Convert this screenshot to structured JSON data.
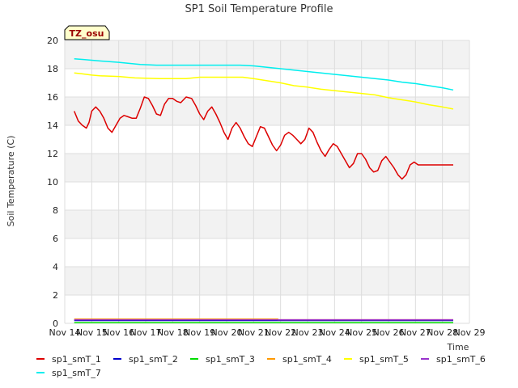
{
  "chart_data": {
    "type": "line",
    "title": "SP1 Soil Temperature Profile",
    "xlabel": "Time",
    "ylabel": "Soil Temperature (C)",
    "badge": "TZ_osu",
    "ylim": [
      0,
      20
    ],
    "yticks": [
      0,
      2,
      4,
      6,
      8,
      10,
      12,
      14,
      16,
      18,
      20
    ],
    "xlim": [
      0,
      15
    ],
    "xtick_values": [
      0,
      1,
      2,
      3,
      4,
      5,
      6,
      7,
      8,
      9,
      10,
      11,
      12,
      13,
      14,
      15
    ],
    "xtick_labels": [
      "Nov 14",
      "Nov 15",
      "Nov 16",
      "Nov 17",
      "Nov 18",
      "Nov 19",
      "Nov 20",
      "Nov 21",
      "Nov 22",
      "Nov 23",
      "Nov 24",
      "Nov 25",
      "Nov 26",
      "Nov 27",
      "Nov 28",
      "Nov 29"
    ],
    "grid": true,
    "legend_position": "bottom",
    "series": [
      {
        "name": "sp1_smT_1",
        "color": "#dd0000",
        "x": [
          0.35,
          0.5,
          0.65,
          0.8,
          0.9,
          1.0,
          1.15,
          1.3,
          1.45,
          1.6,
          1.75,
          1.9,
          2.05,
          2.2,
          2.35,
          2.5,
          2.65,
          2.8,
          2.95,
          3.1,
          3.25,
          3.4,
          3.55,
          3.7,
          3.85,
          4.0,
          4.15,
          4.3,
          4.5,
          4.7,
          4.85,
          5.0,
          5.15,
          5.3,
          5.45,
          5.6,
          5.75,
          5.9,
          6.05,
          6.2,
          6.35,
          6.5,
          6.65,
          6.8,
          6.95,
          7.1,
          7.25,
          7.4,
          7.55,
          7.7,
          7.85,
          8.0,
          8.15,
          8.3,
          8.45,
          8.6,
          8.75,
          8.9,
          9.05,
          9.2,
          9.35,
          9.5,
          9.65,
          9.8,
          9.95,
          10.1,
          10.25,
          10.4,
          10.55,
          10.7,
          10.85,
          11.0,
          11.15,
          11.3,
          11.45,
          11.6,
          11.75,
          11.9,
          12.05,
          12.2,
          12.35,
          12.5,
          12.65,
          12.8,
          12.95,
          13.1,
          13.25,
          13.4,
          13.55,
          13.7,
          13.85,
          14.0,
          14.15,
          14.3,
          14.4
        ],
        "values": [
          15.0,
          14.3,
          14.0,
          13.8,
          14.2,
          15.0,
          15.3,
          15.0,
          14.5,
          13.8,
          13.5,
          14.0,
          14.5,
          14.7,
          14.6,
          14.5,
          14.5,
          15.2,
          16.0,
          15.9,
          15.4,
          14.8,
          14.7,
          15.5,
          15.9,
          15.9,
          15.7,
          15.6,
          16.0,
          15.9,
          15.4,
          14.8,
          14.4,
          15.0,
          15.3,
          14.8,
          14.2,
          13.5,
          13.0,
          13.8,
          14.2,
          13.8,
          13.2,
          12.7,
          12.5,
          13.2,
          13.9,
          13.8,
          13.2,
          12.6,
          12.2,
          12.6,
          13.3,
          13.5,
          13.3,
          13.0,
          12.7,
          13.0,
          13.8,
          13.5,
          12.8,
          12.2,
          11.8,
          12.3,
          12.7,
          12.5,
          12.0,
          11.5,
          11.0,
          11.3,
          12.0,
          12.0,
          11.6,
          11.0,
          10.7,
          10.8,
          11.5,
          11.8,
          11.4,
          11.0,
          10.5,
          10.2,
          10.5,
          11.2,
          11.4,
          11.2,
          11.2,
          11.2,
          11.2,
          11.2,
          11.2,
          11.2,
          11.2,
          11.2,
          11.2
        ]
      },
      {
        "name": "sp1_smT_2",
        "color": "#0000cc",
        "x": [
          0.35,
          14.4
        ],
        "values": [
          0.2,
          0.2
        ]
      },
      {
        "name": "sp1_smT_3",
        "color": "#00dd00",
        "x": [
          0.35,
          14.4
        ],
        "values": [
          0.05,
          0.05
        ]
      },
      {
        "name": "sp1_smT_4",
        "color": "#ff9900",
        "x": [
          0.35,
          7.9,
          7.9,
          14.4
        ],
        "values": [
          0.3,
          0.3,
          0.25,
          0.25
        ]
      },
      {
        "name": "sp1_smT_5",
        "color": "#ffff00",
        "x": [
          0.35,
          0.6,
          1.0,
          1.3,
          2.0,
          2.6,
          3.5,
          4.5,
          5.0,
          6.0,
          6.6,
          7.0,
          7.5,
          8.0,
          8.5,
          9.0,
          9.5,
          10.0,
          10.5,
          11.0,
          11.5,
          12.0,
          12.5,
          13.0,
          13.5,
          14.0,
          14.4
        ],
        "values": [
          17.7,
          17.65,
          17.55,
          17.5,
          17.45,
          17.35,
          17.3,
          17.3,
          17.4,
          17.4,
          17.4,
          17.3,
          17.15,
          17.0,
          16.8,
          16.7,
          16.55,
          16.45,
          16.35,
          16.25,
          16.15,
          15.95,
          15.8,
          15.65,
          15.45,
          15.3,
          15.15
        ]
      },
      {
        "name": "sp1_smT_6",
        "color": "#9933cc",
        "x": [
          0.35,
          14.4
        ],
        "values": [
          0.25,
          0.25
        ]
      },
      {
        "name": "sp1_smT_7",
        "color": "#00eeee",
        "x": [
          0.35,
          0.7,
          1.3,
          2.0,
          2.8,
          3.4,
          4.5,
          5.5,
          6.5,
          7.0,
          7.5,
          8.0,
          8.5,
          9.0,
          9.5,
          10.0,
          10.5,
          11.0,
          11.5,
          12.0,
          12.5,
          13.0,
          13.5,
          14.0,
          14.4
        ],
        "values": [
          18.7,
          18.65,
          18.55,
          18.45,
          18.3,
          18.25,
          18.25,
          18.25,
          18.25,
          18.2,
          18.1,
          18.0,
          17.9,
          17.8,
          17.7,
          17.6,
          17.5,
          17.4,
          17.3,
          17.2,
          17.05,
          16.95,
          16.8,
          16.65,
          16.5
        ]
      }
    ]
  }
}
